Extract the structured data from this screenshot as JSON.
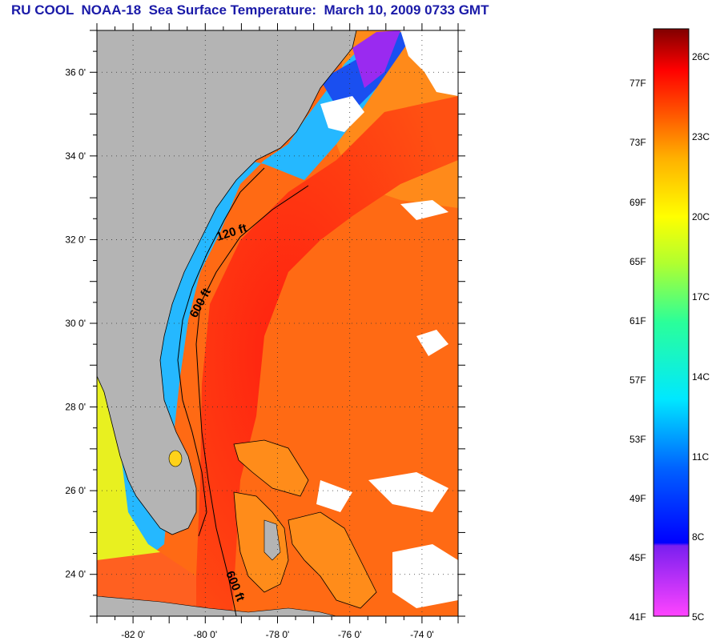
{
  "title": "RU COOL  NOAA-18  Sea Surface Temperature:  March 10, 2009 0733 GMT",
  "map": {
    "lon_range": [
      -83.0,
      -73.0
    ],
    "lat_range": [
      23.0,
      37.0
    ],
    "lat_ticks": [
      {
        "value": 36,
        "label": "36 0'"
      },
      {
        "value": 34,
        "label": "34 0'"
      },
      {
        "value": 32,
        "label": "32 0'"
      },
      {
        "value": 30,
        "label": "30 0'"
      },
      {
        "value": 28,
        "label": "28 0'"
      },
      {
        "value": 26,
        "label": "26 0'"
      },
      {
        "value": 24,
        "label": "24 0'"
      }
    ],
    "lon_ticks": [
      {
        "value": -82,
        "label": "-82 0'"
      },
      {
        "value": -80,
        "label": "-80 0'"
      },
      {
        "value": -78,
        "label": "-78 0'"
      },
      {
        "value": -76,
        "label": "-76 0'"
      },
      {
        "value": -74,
        "label": "-74 0'"
      }
    ],
    "contour_labels": [
      {
        "text": "120 ft"
      },
      {
        "text": "600 ft"
      },
      {
        "text": "600 ft"
      }
    ],
    "colors": {
      "land": "#b4b4b4",
      "cloud": "#ffffff",
      "gulf_stream": "#ff2a10",
      "ocean_warm": "#ff6a12",
      "coastal_cold": "#1fb8ff"
    }
  },
  "colorbar": {
    "fahrenheit_labels": [
      "77F",
      "73F",
      "69F",
      "65F",
      "61F",
      "57F",
      "53F",
      "49F",
      "45F",
      "41F"
    ],
    "celsius_labels": [
      "26C",
      "23C",
      "20C",
      "17C",
      "14C",
      "11C",
      "8C",
      "5C"
    ]
  }
}
